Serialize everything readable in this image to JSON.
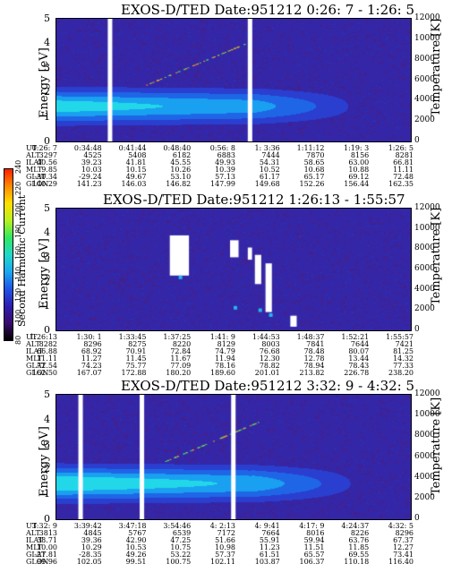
{
  "chart_data": [
    {
      "type": "heatmap",
      "title": "EXOS-D/TED   Date:951212  0:26: 7 - 1:26: 5",
      "ylabel": "Energy [eV]",
      "y2label": "Temperature [K]",
      "ylim": [
        0,
        5
      ],
      "y2lim": [
        0,
        12000
      ],
      "yticks": [
        "0",
        "1",
        "2",
        "3",
        "4",
        "5"
      ],
      "y2ticks": [
        "0",
        "2000",
        "4000",
        "6000",
        "8000",
        "10000",
        "12000"
      ],
      "row_labels": [
        "UT",
        "ALT",
        "ILAT",
        "MLT",
        "GLAT",
        "GLON"
      ],
      "columns": [
        [
          "0:26: 7",
          "3297",
          "40.56",
          "9.85",
          "-30.34",
          "140.29"
        ],
        [
          "0:34:48",
          "4525",
          "39.23",
          "10.03",
          "-29.24",
          "141.23"
        ],
        [
          "0:41:44",
          "5408",
          "41.81",
          "10.15",
          "49.67",
          "146.03"
        ],
        [
          "0:48:40",
          "6182",
          "45.55",
          "10.26",
          "53.10",
          "146.82"
        ],
        [
          "0:56: 8",
          "6883",
          "49.93",
          "10.39",
          "57.13",
          "147.99"
        ],
        [
          "1: 3:36",
          "7444",
          "54.31",
          "10.52",
          "61.17",
          "149.68"
        ],
        [
          "1:11:12",
          "7870",
          "58.65",
          "10.68",
          "65.17",
          "152.26"
        ],
        [
          "1:19: 3",
          "8156",
          "63.00",
          "10.88",
          "69.12",
          "156.44"
        ],
        [
          "1:26: 5",
          "8281",
          "66.81",
          "11.11",
          "72.48",
          "162.35"
        ]
      ]
    },
    {
      "type": "heatmap",
      "title": "EXOS-D/TED   Date:951212  1:26:13 - 1:55:57",
      "ylabel": "Energy [eV]",
      "y2label": "Temperature [K]",
      "ylim": [
        0,
        5
      ],
      "y2lim": [
        0,
        12000
      ],
      "yticks": [
        "0",
        "1",
        "2",
        "3",
        "4",
        "5"
      ],
      "y2ticks": [
        "0",
        "2000",
        "4000",
        "6000",
        "8000",
        "10000",
        "12000"
      ],
      "row_labels": [
        "UT",
        "ALT",
        "ILAT",
        "MLT",
        "GLAT",
        "GLON"
      ],
      "columns": [
        [
          "1:26:13",
          "8282",
          "66.88",
          "11.11",
          "72.54",
          "162.50"
        ],
        [
          "1:30: 1",
          "8296",
          "68.92",
          "11.27",
          "74.23",
          "167.07"
        ],
        [
          "1:33:45",
          "8275",
          "70.91",
          "11.45",
          "75.77",
          "172.88"
        ],
        [
          "1:37:25",
          "8220",
          "72.84",
          "11.67",
          "77.09",
          "180.20"
        ],
        [
          "1:41: 9",
          "8129",
          "74.79",
          "11.94",
          "78.16",
          "189.60"
        ],
        [
          "1:44:53",
          "8003",
          "76.68",
          "12.30",
          "78.82",
          "201.01"
        ],
        [
          "1:48:37",
          "7841",
          "78.48",
          "12.78",
          "78.94",
          "213.82"
        ],
        [
          "1:52:21",
          "7644",
          "80.07",
          "13.44",
          "78.43",
          "226.78"
        ],
        [
          "1:55:57",
          "7421",
          "81.25",
          "14.32",
          "77.33",
          "238.20"
        ]
      ],
      "colorbar": {
        "label": "Second Harmonic Current",
        "ticks": [
          "80",
          "100",
          "120",
          "140",
          "160",
          "180",
          "200",
          "220",
          "240"
        ],
        "colors": [
          "#000000",
          "#3a0a6e",
          "#2c1fb0",
          "#1f55e6",
          "#1aa8f0",
          "#22d8c8",
          "#30e860",
          "#b8f020",
          "#ffe000",
          "#ff8a00",
          "#ff2000"
        ]
      }
    },
    {
      "type": "heatmap",
      "title": "EXOS-D/TED   Date:951212  3:32: 9 - 4:32: 5",
      "ylabel": "Energy [eV]",
      "y2label": "Temperature [K]",
      "ylim": [
        0,
        5
      ],
      "y2lim": [
        0,
        12000
      ],
      "yticks": [
        "0",
        "1",
        "2",
        "3",
        "4",
        "5"
      ],
      "y2ticks": [
        "0",
        "2000",
        "4000",
        "6000",
        "8000",
        "10000",
        "12000"
      ],
      "row_labels": [
        "UT",
        "ALT",
        "ILAT",
        "MLT",
        "GLAT",
        "GLON"
      ],
      "columns": [
        [
          "3:32: 9",
          "3813",
          "38.71",
          "10.00",
          "-27.81",
          "99.96"
        ],
        [
          "3:39:42",
          "4845",
          "39.36",
          "10.29",
          "-28.35",
          "102.05"
        ],
        [
          "3:47:18",
          "5767",
          "42.90",
          "10.53",
          "49.26",
          "99.51"
        ],
        [
          "3:54:46",
          "6539",
          "47.25",
          "10.75",
          "53.22",
          "100.75"
        ],
        [
          "4: 2:13",
          "7172",
          "51.66",
          "10.98",
          "57.37",
          "102.11"
        ],
        [
          "4: 9:41",
          "7664",
          "55.91",
          "11.23",
          "61.51",
          "103.87"
        ],
        [
          "4:17: 9",
          "8016",
          "59.94",
          "11.51",
          "65.57",
          "106.37"
        ],
        [
          "4:24:37",
          "8226",
          "63.76",
          "11.85",
          "69.55",
          "110.18"
        ],
        [
          "4:32: 5",
          "8296",
          "67.37",
          "12.27",
          "73.41",
          "116.40"
        ]
      ]
    }
  ]
}
